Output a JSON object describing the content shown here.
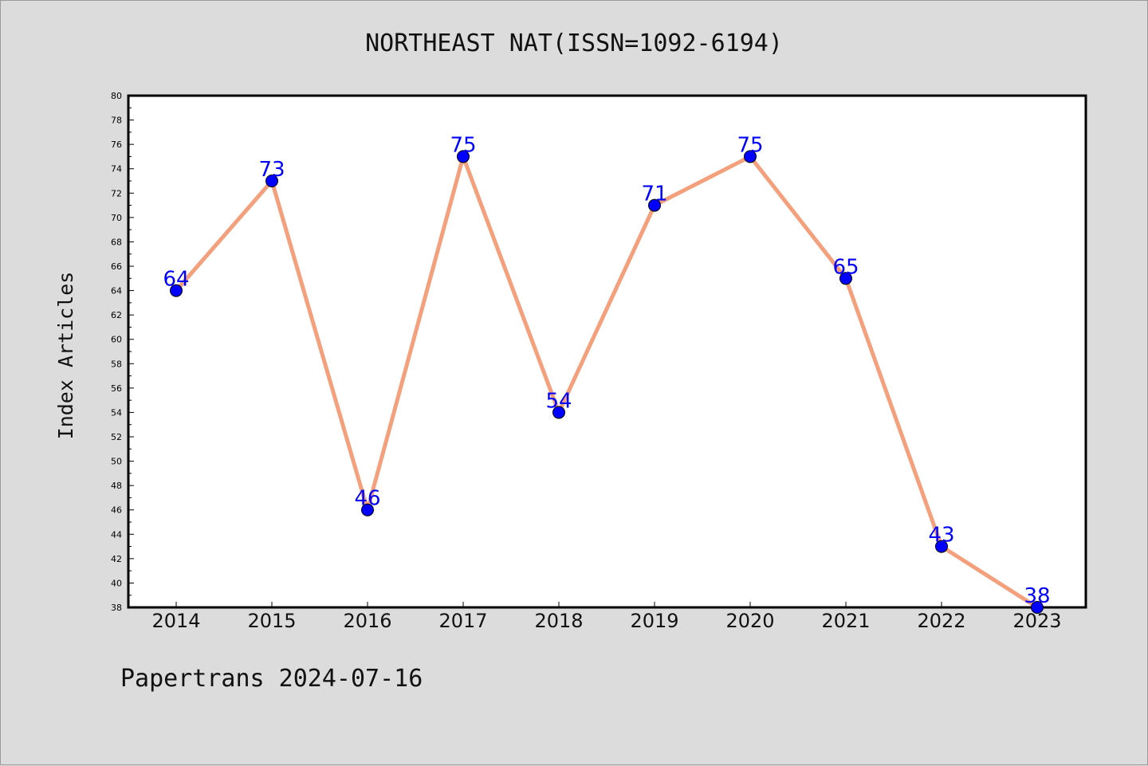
{
  "title": "NORTHEAST NAT(ISSN=1092-6194)",
  "footer": "Papertrans 2024-07-16",
  "colors": {
    "background": "#dcdcdc",
    "plot_background": "#ffffff",
    "line": "#f4a07c",
    "marker": "#0000ff",
    "data_label": "#0000ff"
  },
  "chart_data": {
    "type": "line",
    "title": "NORTHEAST NAT(ISSN=1092-6194)",
    "xlabel": "",
    "ylabel": "Index Articles",
    "categories": [
      "2014",
      "2015",
      "2016",
      "2017",
      "2018",
      "2019",
      "2020",
      "2021",
      "2022",
      "2023"
    ],
    "values": [
      64,
      73,
      46,
      75,
      54,
      71,
      75,
      65,
      43,
      38
    ],
    "ylim": [
      38,
      80
    ],
    "ytick_step": 2,
    "grid": false,
    "legend": "none"
  }
}
